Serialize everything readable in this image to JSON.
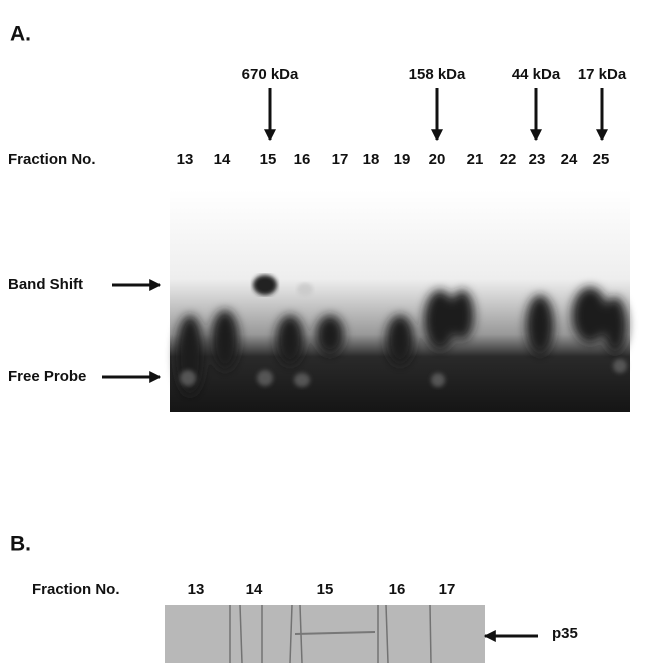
{
  "panel_a": {
    "label": "A.",
    "markers": [
      "670 kDa",
      "158 kDa",
      "44 kDa",
      "17 kDa"
    ],
    "fraction_label": "Fraction No.",
    "fractions": [
      "13",
      "14",
      "15",
      "16",
      "17",
      "18",
      "19",
      "20",
      "21",
      "22",
      "23",
      "24",
      "25"
    ],
    "band_shift": "Band Shift",
    "free_probe": "Free Probe"
  },
  "panel_b": {
    "label": "B.",
    "fraction_label": "Fraction No.",
    "fractions": [
      "13",
      "14",
      "15",
      "16",
      "17"
    ],
    "band": "p35"
  }
}
